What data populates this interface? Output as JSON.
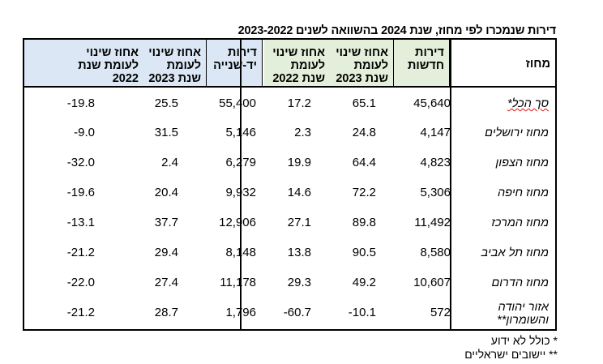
{
  "title": "דירות שנמכרו לפי מחוז, שנת 2024 בהשוואה לשנים 2023-2022",
  "headers": {
    "district": "מחוז",
    "new_apts": "דירות חדשות",
    "new_pct_2023": "אחוז שינוי לעומת שנת 2023",
    "new_pct_2022": "אחוז שינוי לעומת שנת 2022",
    "used_apts": "דירות יד-שנייה",
    "used_pct_2023": "אחוז שינוי לעומת שנת 2023",
    "used_pct_2022": "אחוז שינוי לעומת שנת 2022"
  },
  "rows": [
    {
      "district": "סך הכל*",
      "new": "45,640",
      "new23": "65.1",
      "new22": "17.2",
      "used": "55,400",
      "used23": "25.5",
      "used22": "-19.8"
    },
    {
      "district": "מחוז ירושלים",
      "new": "4,147",
      "new23": "24.8",
      "new22": "2.3",
      "used": "5,146",
      "used23": "31.5",
      "used22": "-9.0"
    },
    {
      "district": "מחוז הצפון",
      "new": "4,823",
      "new23": "64.4",
      "new22": "19.9",
      "used": "6,279",
      "used23": "2.4",
      "used22": "-32.0"
    },
    {
      "district": "מחוז חיפה",
      "new": "5,306",
      "new23": "72.2",
      "new22": "14.6",
      "used": "9,932",
      "used23": "20.4",
      "used22": "-19.6"
    },
    {
      "district": "מחוז המרכז",
      "new": "11,492",
      "new23": "89.8",
      "new22": "27.1",
      "used": "12,906",
      "used23": "37.7",
      "used22": "-13.1"
    },
    {
      "district": "מחוז תל אביב",
      "new": "8,580",
      "new23": "90.5",
      "new22": "13.8",
      "used": "8,148",
      "used23": "29.4",
      "used22": "-21.2"
    },
    {
      "district": "מחוז הדרום",
      "new": "10,607",
      "new23": "49.2",
      "new22": "29.3",
      "used": "11,178",
      "used23": "27.4",
      "used22": "-22.0"
    },
    {
      "district": "אזור יהודה והשומרון**",
      "new": "572",
      "new23": "-10.1",
      "new22": "-60.7",
      "used": "1,796",
      "used23": "28.7",
      "used22": "-21.2"
    }
  ],
  "notes": {
    "n1": "* כולל לא ידוע",
    "n2": "** יישובים ישראליים"
  },
  "colors": {
    "new_header_bg": "#e3efda",
    "used_header_bg": "#dbe7f5"
  }
}
